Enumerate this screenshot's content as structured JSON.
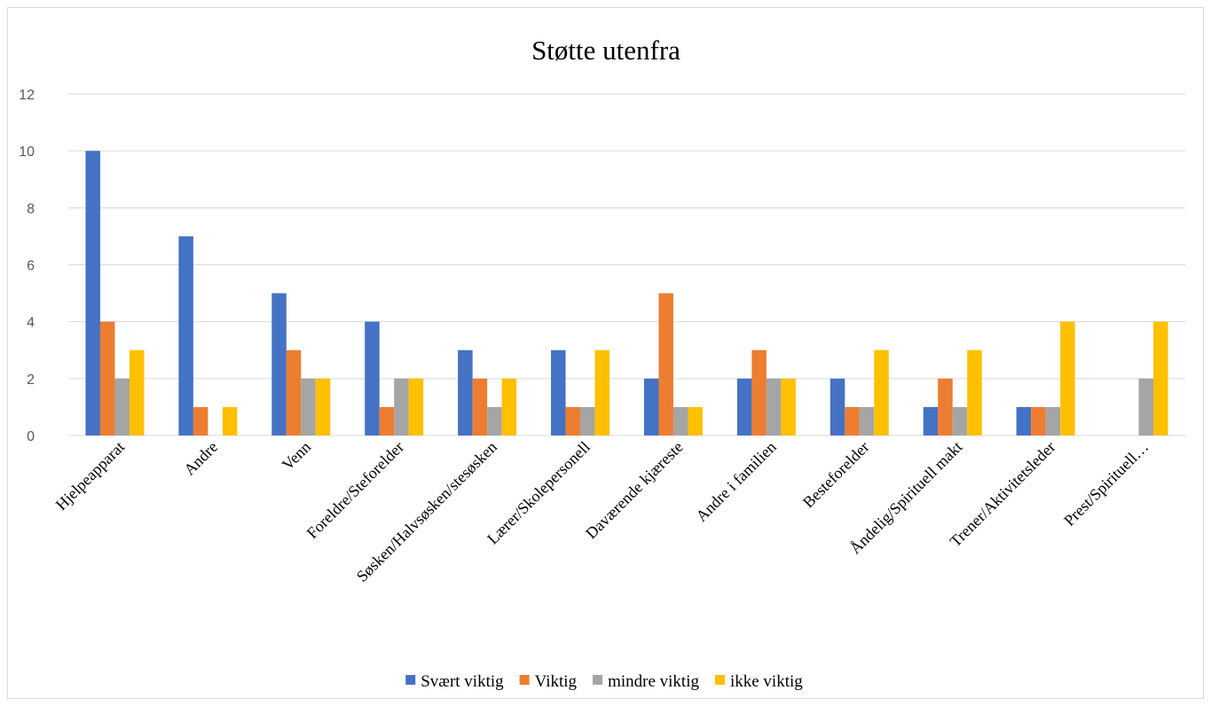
{
  "chart_data": {
    "type": "bar",
    "title": "Støtte utenfra",
    "xlabel": "",
    "ylabel": "",
    "ylim": [
      0,
      12
    ],
    "yticks": [
      0,
      2,
      4,
      6,
      8,
      10,
      12
    ],
    "grid": true,
    "legend_position": "bottom",
    "categories": [
      "Hjelpeapparat",
      "Andre",
      "Venn",
      "Foreldre/Steforelder",
      "Søsken/Halvsøsken/stesøsken",
      "Lærer/Skolepersonell",
      "Daværende kjæreste",
      "Andre i familien",
      "Besteforelder",
      "Åndelig/Spirituell makt",
      "Trener/Aktivitetsleder",
      "Prest/Spirituell…"
    ],
    "series": [
      {
        "name": "Svært viktig",
        "color": "#4472c4",
        "values": [
          10,
          7,
          5,
          4,
          3,
          3,
          2,
          2,
          2,
          1,
          1,
          0
        ]
      },
      {
        "name": "Viktig",
        "color": "#ed7d31",
        "values": [
          4,
          1,
          3,
          1,
          2,
          1,
          5,
          3,
          1,
          2,
          1,
          0
        ]
      },
      {
        "name": "mindre viktig",
        "color": "#a5a5a5",
        "values": [
          2,
          0,
          2,
          2,
          1,
          1,
          1,
          2,
          1,
          1,
          1,
          2
        ]
      },
      {
        "name": "ikke viktig",
        "color": "#ffc000",
        "values": [
          3,
          1,
          2,
          2,
          2,
          3,
          1,
          2,
          3,
          3,
          4,
          4
        ]
      }
    ]
  }
}
